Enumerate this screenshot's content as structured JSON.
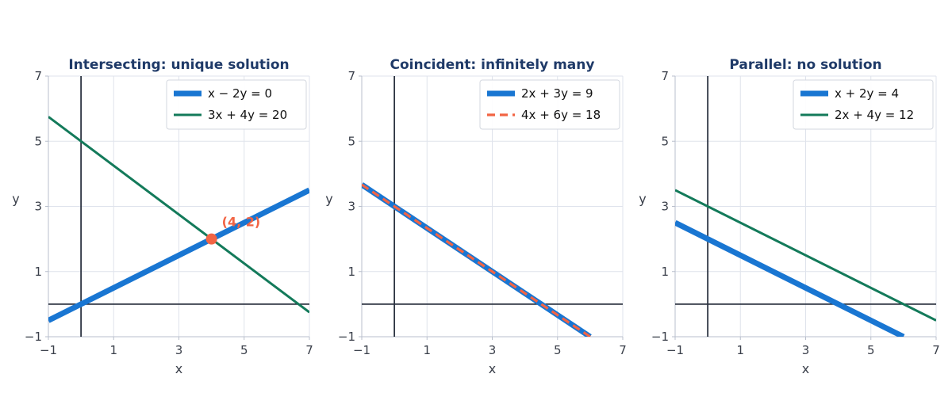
{
  "chart_data": [
    {
      "type": "line",
      "title": "Intersecting: unique solution",
      "xlabel": "x",
      "ylabel": "y",
      "xlim": [
        -1,
        7
      ],
      "ylim": [
        -1,
        7
      ],
      "xticks": [
        -1,
        1,
        3,
        5,
        7
      ],
      "yticks": [
        -1,
        1,
        3,
        5,
        7
      ],
      "xtick_labels": [
        "−1",
        "1",
        "3",
        "5",
        "7"
      ],
      "ytick_labels": [
        "−1",
        "1",
        "3",
        "5",
        "7"
      ],
      "grid": true,
      "legend": "top-right",
      "series": [
        {
          "name": "x − 2y = 0",
          "coef": [
            1,
            -2,
            0
          ],
          "x": [
            -1,
            7
          ],
          "y": [
            -0.5,
            3.5
          ],
          "color": "#1976d2",
          "style": "thick"
        },
        {
          "name": "3x + 4y = 20",
          "coef": [
            3,
            4,
            20
          ],
          "x": [
            -1,
            7
          ],
          "y": [
            5.75,
            -0.25
          ],
          "color": "#137a5a",
          "style": "thin"
        }
      ],
      "annotations": [
        {
          "label": "(4, 2)",
          "x": 4,
          "y": 2,
          "color": "#f26444"
        }
      ]
    },
    {
      "type": "line",
      "title": "Coincident: infinitely many",
      "xlabel": "x",
      "ylabel": "y",
      "xlim": [
        -1,
        7
      ],
      "ylim": [
        -1,
        7
      ],
      "xticks": [
        -1,
        1,
        3,
        5,
        7
      ],
      "yticks": [
        -1,
        1,
        3,
        5,
        7
      ],
      "xtick_labels": [
        "−1",
        "1",
        "3",
        "5",
        "7"
      ],
      "ytick_labels": [
        "−1",
        "1",
        "3",
        "5",
        "7"
      ],
      "grid": true,
      "legend": "top-right",
      "series": [
        {
          "name": "2x + 3y = 9",
          "coef": [
            2,
            3,
            9
          ],
          "x": [
            -1,
            6
          ],
          "y": [
            3.6667,
            -1
          ],
          "color": "#1976d2",
          "style": "thick"
        },
        {
          "name": "4x + 6y = 18",
          "coef": [
            4,
            6,
            18
          ],
          "x": [
            -1,
            6
          ],
          "y": [
            3.6667,
            -1
          ],
          "color": "#f26444",
          "style": "dashed"
        }
      ],
      "annotations": []
    },
    {
      "type": "line",
      "title": "Parallel: no solution",
      "xlabel": "x",
      "ylabel": "y",
      "xlim": [
        -1,
        7
      ],
      "ylim": [
        -1,
        7
      ],
      "xticks": [
        -1,
        1,
        3,
        5,
        7
      ],
      "yticks": [
        -1,
        1,
        3,
        5,
        7
      ],
      "xtick_labels": [
        "−1",
        "1",
        "3",
        "5",
        "7"
      ],
      "ytick_labels": [
        "−1",
        "1",
        "3",
        "5",
        "7"
      ],
      "grid": true,
      "legend": "top-right",
      "series": [
        {
          "name": "x + 2y = 4",
          "coef": [
            1,
            2,
            4
          ],
          "x": [
            -1,
            6
          ],
          "y": [
            2.5,
            -1
          ],
          "color": "#1976d2",
          "style": "thick"
        },
        {
          "name": "2x + 4y = 12",
          "coef": [
            2,
            4,
            12
          ],
          "x": [
            -1,
            7
          ],
          "y": [
            3.5,
            -0.5
          ],
          "color": "#137a5a",
          "style": "thin"
        }
      ],
      "annotations": []
    }
  ]
}
